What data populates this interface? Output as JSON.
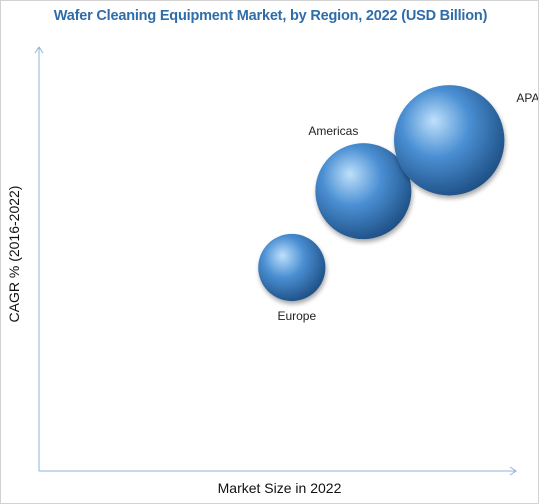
{
  "chart_data": {
    "type": "scatter",
    "title": "Wafer Cleaning Equipment Market, by Region, 2022 (USD Billion)",
    "xlabel": "Market Size in 2022",
    "ylabel": "CAGR % (2016-2022)",
    "grid": false,
    "axis_ticks": false,
    "series": [
      {
        "points": [
          {
            "label": "Europe",
            "x": 0.53,
            "y": 0.48,
            "size": 0.7
          },
          {
            "label": "Americas",
            "x": 0.68,
            "y": 0.66,
            "size": 1.0
          },
          {
            "label": "APAC",
            "x": 0.86,
            "y": 0.78,
            "size": 1.15
          }
        ]
      }
    ],
    "colors": {
      "bubble_highlight": "#bfe0fb",
      "bubble_mid": "#4a8fd3",
      "bubble_dark": "#1b4b7f",
      "axis": "#8fb3d9",
      "title": "#2f6da8"
    }
  }
}
